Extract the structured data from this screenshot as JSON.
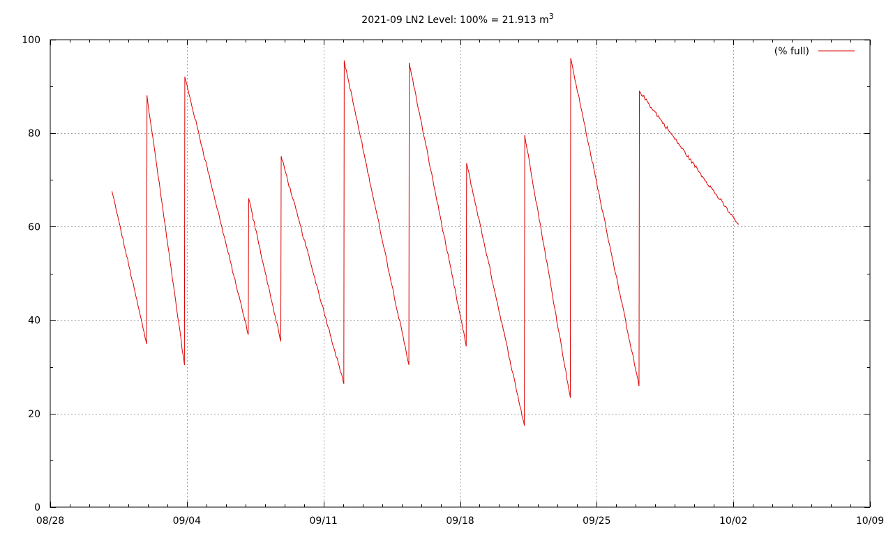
{
  "chart_data": {
    "type": "line",
    "title": "2021-09 LN2 Level: 100% = 21.913 m",
    "title_superscript": "3",
    "xlabel": "",
    "ylabel": "",
    "x_unit": "date",
    "xlim": [
      "08/28",
      "10/09"
    ],
    "ylim": [
      0,
      100
    ],
    "x_ticks": [
      "08/28",
      "09/04",
      "09/11",
      "09/18",
      "09/25",
      "10/02",
      "10/09"
    ],
    "y_ticks": [
      "0",
      "20",
      "40",
      "60",
      "80",
      "100"
    ],
    "grid": true,
    "legend_position": "top-right",
    "colors": {
      "series": "#dd0000",
      "grid": "#a0a0a0",
      "axis": "#000000"
    },
    "series": [
      {
        "name": "(% full)",
        "x": [
          "08/31 04:00",
          "09/01 22:30",
          "09/01 23:00",
          "09/03 21:00",
          "09/03 21:30",
          "09/07 03:30",
          "09/07 04:00",
          "09/08 19:30",
          "09/08 20:00",
          "09/12 01:00",
          "09/12 01:30",
          "09/15 09:00",
          "09/15 09:30",
          "09/18 07:30",
          "09/18 08:00",
          "09/21 07:00",
          "09/21 07:30",
          "09/23 15:30",
          "09/23 16:00",
          "09/27 04:00",
          "09/27 04:30",
          "10/02 06:00"
        ],
        "y": [
          67.5,
          35.0,
          88.0,
          30.5,
          92.0,
          37.0,
          66.0,
          35.5,
          75.0,
          26.5,
          95.5,
          30.5,
          95.0,
          34.5,
          73.5,
          17.5,
          79.5,
          23.5,
          96.0,
          26.0,
          89.0,
          60.5
        ]
      }
    ]
  }
}
